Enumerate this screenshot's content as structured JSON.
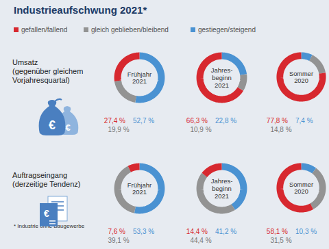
{
  "chart_data": {
    "type": "pie",
    "title": "Industrieaufschwung 2021*",
    "categories": [
      "gefallen/fallend",
      "gleich geblieben/bleibend",
      "gestiegen/steigend"
    ],
    "colors": [
      "#d7282f",
      "#939393",
      "#4a92d2"
    ],
    "legend": "top",
    "data_labels": true,
    "caption": "* Industrie ohne Baugewerbe",
    "groups": [
      {
        "label": "Umsatz\n(gegenüber gleichem\nVorjahresquartal)",
        "symbol": "€",
        "charts": [
          {
            "title": "Frühjahr\n2021",
            "values": [
              27.4,
              19.9,
              52.7
            ],
            "value_labels": [
              "27,4 %",
              "19,9 %",
              "52,7 %"
            ]
          },
          {
            "title": "Jahres-\nbeginn\n2021",
            "values": [
              66.3,
              10.9,
              22.8
            ],
            "value_labels": [
              "66,3 %",
              "10,9 %",
              "22,8 %"
            ]
          },
          {
            "title": "Sommer\n2020",
            "values": [
              77.8,
              14.8,
              7.4
            ],
            "value_labels": [
              "77,8 %",
              "14,8 %",
              "7,4 %"
            ]
          }
        ]
      },
      {
        "label": "Auftragseingang\n(derzeitige Tendenz)",
        "symbol": "€",
        "charts": [
          {
            "title": "Frühjahr\n2021",
            "values": [
              7.6,
              39.1,
              53.3
            ],
            "value_labels": [
              "7,6 %",
              "39,1 %",
              "53,3 %"
            ]
          },
          {
            "title": "Jahres-\nbeginn\n2021",
            "values": [
              14.4,
              44.4,
              41.2
            ],
            "value_labels": [
              "14,4 %",
              "44,4 %",
              "41,2 %"
            ]
          },
          {
            "title": "Sommer\n2020",
            "values": [
              58.1,
              31.5,
              10.3
            ],
            "value_labels": [
              "58,1 %",
              "31,5 %",
              "10,3 %"
            ]
          }
        ]
      }
    ]
  }
}
